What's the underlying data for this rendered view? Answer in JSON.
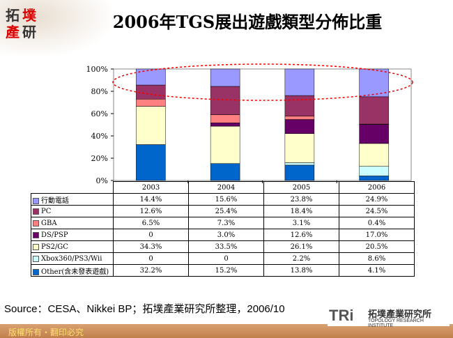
{
  "logo": {
    "text": [
      "拓",
      "墣",
      "產",
      "研"
    ]
  },
  "title": "2006年TGS展出遊戲類型分佈比重",
  "chart_data": {
    "type": "bar",
    "stacked": true,
    "percent": true,
    "categories": [
      "2003",
      "2004",
      "2005",
      "2006"
    ],
    "ylim": [
      0,
      100
    ],
    "yticks": [
      "0%",
      "20%",
      "40%",
      "60%",
      "80%",
      "100%"
    ],
    "series": [
      {
        "name": "行動電話",
        "color": "#9999FF",
        "values": [
          14.4,
          15.6,
          23.8,
          24.9
        ],
        "labels": [
          "14.4%",
          "15.6%",
          "23.8%",
          "24.9%"
        ]
      },
      {
        "name": "PC",
        "color": "#993366",
        "values": [
          12.6,
          25.4,
          18.4,
          24.5
        ],
        "labels": [
          "12.6%",
          "25.4%",
          "18.4%",
          "24.5%"
        ]
      },
      {
        "name": "GBA",
        "color": "#FF8080",
        "values": [
          6.5,
          7.3,
          3.1,
          0.4
        ],
        "labels": [
          "6.5%",
          "7.3%",
          "3.1%",
          "0.4%"
        ]
      },
      {
        "name": "DS/PSP",
        "color": "#660066",
        "values": [
          0,
          3.0,
          12.6,
          17.0
        ],
        "labels": [
          "0",
          "3.0%",
          "12.6%",
          "17.0%"
        ]
      },
      {
        "name": "PS2/GC",
        "color": "#FFFFCC",
        "values": [
          34.3,
          33.5,
          26.1,
          20.5
        ],
        "labels": [
          "34.3%",
          "33.5%",
          "26.1%",
          "20.5%"
        ]
      },
      {
        "name": "Xbox360/PS3/Wii",
        "color": "#CCFFFF",
        "values": [
          0,
          0,
          2.2,
          8.6
        ],
        "labels": [
          "0",
          "0",
          "2.2%",
          "8.6%"
        ]
      },
      {
        "name": "Other(含未發表遊戲)",
        "color": "#0066CC",
        "values": [
          32.2,
          15.2,
          13.8,
          4.1
        ],
        "labels": [
          "32.2%",
          "15.2%",
          "13.8%",
          "4.1%"
        ]
      }
    ],
    "annotation": "red dashed ellipse around top segments"
  },
  "source": "Source：CESA、Nikkei BP；拓墣產業研究所整理，2006/10",
  "footer": {
    "copyright": "版權所有・翻印必究",
    "brand_mark": "TRi",
    "brand_cn": "拓墣產業研究所",
    "brand_en": "TOPOLOGY RESEARCH INSTITUTE"
  }
}
